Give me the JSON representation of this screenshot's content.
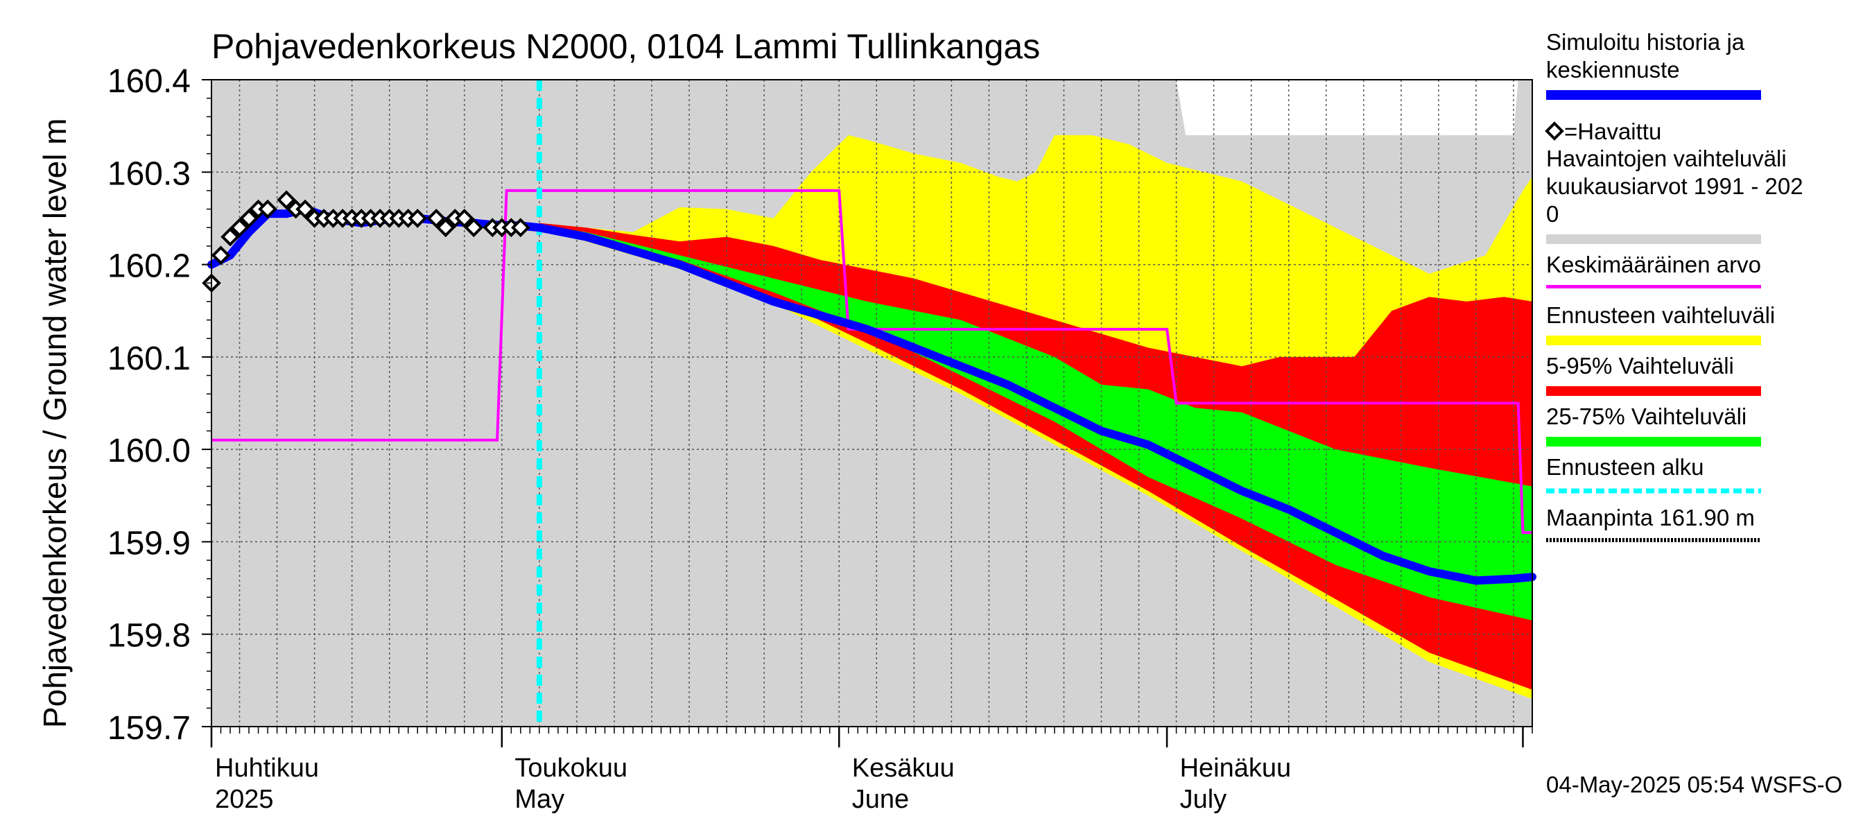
{
  "chart_data": {
    "type": "area",
    "title": "Pohjavedenkorkeus N2000, 0104 Lammi Tullinkangas",
    "ylabel": "Pohjavedenkorkeus / Ground water level   m",
    "xlabel": "",
    "ylim": [
      159.7,
      160.4
    ],
    "xlim_days": [
      0,
      141
    ],
    "y_ticks": [
      "159.7",
      "159.8",
      "159.9",
      "160.0",
      "160.1",
      "160.2",
      "160.3",
      "160.4"
    ],
    "x_month_labels": [
      {
        "day": 0,
        "fi": "Huhtikuu",
        "en": "2025"
      },
      {
        "day": 32,
        "fi": "Toukokuu",
        "en": "May"
      },
      {
        "day": 68,
        "fi": "Kesäkuu",
        "en": "June"
      },
      {
        "day": 103,
        "fi": "Heinäkuu",
        "en": "July"
      }
    ],
    "month_boundaries_days": [
      0,
      31,
      67,
      102,
      140
    ],
    "forecast_start_day": 35,
    "colors": {
      "history_range": "#d3d3d3",
      "mean": "#ff00ff",
      "forecast_range": "#ffff00",
      "p5_95": "#ff0000",
      "p25_75": "#00ff00",
      "forecast_start": "#00ffff",
      "simulated": "#0000ff",
      "observed": "#000000"
    },
    "history_range_upper": [
      [
        0,
        160.4
      ],
      [
        103,
        160.4
      ],
      [
        104,
        160.34
      ],
      [
        139,
        160.34
      ],
      [
        139.5,
        160.4
      ],
      [
        141,
        160.4
      ]
    ],
    "history_range_lower": [
      [
        0,
        159.7
      ],
      [
        141,
        159.7
      ]
    ],
    "forecast_range": {
      "upper": [
        [
          35,
          160.245
        ],
        [
          40,
          160.24
        ],
        [
          45,
          160.235
        ],
        [
          50,
          160.262
        ],
        [
          55,
          160.26
        ],
        [
          60,
          160.25
        ],
        [
          64,
          160.3
        ],
        [
          68,
          160.34
        ],
        [
          70,
          160.335
        ],
        [
          75,
          160.32
        ],
        [
          80,
          160.31
        ],
        [
          84,
          160.295
        ],
        [
          86,
          160.29
        ],
        [
          88,
          160.3
        ],
        [
          90,
          160.34
        ],
        [
          94,
          160.34
        ],
        [
          98,
          160.33
        ],
        [
          102,
          160.31
        ],
        [
          106,
          160.3
        ],
        [
          110,
          160.29
        ],
        [
          114,
          160.27
        ],
        [
          118,
          160.25
        ],
        [
          122,
          160.23
        ],
        [
          126,
          160.21
        ],
        [
          130,
          160.19
        ],
        [
          133,
          160.2
        ],
        [
          136,
          160.21
        ],
        [
          140,
          160.28
        ],
        [
          141,
          160.295
        ]
      ],
      "lower": [
        [
          35,
          160.24
        ],
        [
          40,
          160.225
        ],
        [
          50,
          160.195
        ],
        [
          60,
          160.158
        ],
        [
          70,
          160.108
        ],
        [
          80,
          160.06
        ],
        [
          90,
          160.005
        ],
        [
          100,
          159.95
        ],
        [
          110,
          159.89
        ],
        [
          120,
          159.83
        ],
        [
          130,
          159.77
        ],
        [
          141,
          159.73
        ]
      ]
    },
    "p5_95": {
      "upper": [
        [
          35,
          160.245
        ],
        [
          40,
          160.24
        ],
        [
          45,
          160.232
        ],
        [
          50,
          160.225
        ],
        [
          55,
          160.23
        ],
        [
          60,
          160.22
        ],
        [
          65,
          160.205
        ],
        [
          70,
          160.195
        ],
        [
          75,
          160.185
        ],
        [
          80,
          160.17
        ],
        [
          85,
          160.155
        ],
        [
          90,
          160.14
        ],
        [
          95,
          160.125
        ],
        [
          100,
          160.11
        ],
        [
          105,
          160.1
        ],
        [
          110,
          160.09
        ],
        [
          114,
          160.1
        ],
        [
          118,
          160.1
        ],
        [
          122,
          160.1
        ],
        [
          126,
          160.15
        ],
        [
          130,
          160.165
        ],
        [
          134,
          160.16
        ],
        [
          138,
          160.165
        ],
        [
          141,
          160.16
        ]
      ],
      "lower": [
        [
          35,
          160.24
        ],
        [
          40,
          160.228
        ],
        [
          50,
          160.2
        ],
        [
          60,
          160.164
        ],
        [
          70,
          160.115
        ],
        [
          80,
          160.065
        ],
        [
          90,
          160.01
        ],
        [
          100,
          159.955
        ],
        [
          110,
          159.895
        ],
        [
          120,
          159.838
        ],
        [
          130,
          159.78
        ],
        [
          141,
          159.74
        ]
      ]
    },
    "p25_75": {
      "upper": [
        [
          35,
          160.243
        ],
        [
          40,
          160.235
        ],
        [
          50,
          160.21
        ],
        [
          60,
          160.185
        ],
        [
          70,
          160.16
        ],
        [
          80,
          160.14
        ],
        [
          90,
          160.1
        ],
        [
          95,
          160.07
        ],
        [
          100,
          160.065
        ],
        [
          105,
          160.045
        ],
        [
          110,
          160.04
        ],
        [
          115,
          160.02
        ],
        [
          120,
          160.0
        ],
        [
          130,
          159.98
        ],
        [
          141,
          159.96
        ]
      ],
      "lower": [
        [
          35,
          160.24
        ],
        [
          40,
          160.231
        ],
        [
          50,
          160.205
        ],
        [
          60,
          160.17
        ],
        [
          70,
          160.13
        ],
        [
          80,
          160.08
        ],
        [
          90,
          160.03
        ],
        [
          100,
          159.97
        ],
        [
          110,
          159.925
        ],
        [
          120,
          159.875
        ],
        [
          130,
          159.84
        ],
        [
          141,
          159.815
        ]
      ]
    },
    "mean_level": [
      [
        0,
        160.01
      ],
      [
        30.5,
        160.01
      ],
      [
        31.5,
        160.28
      ],
      [
        67,
        160.28
      ],
      [
        68,
        160.13
      ],
      [
        102,
        160.13
      ],
      [
        103,
        160.05
      ],
      [
        139.5,
        160.05
      ],
      [
        140,
        159.91
      ],
      [
        141,
        159.91
      ]
    ],
    "simulated": [
      [
        0,
        160.2
      ],
      [
        2,
        160.21
      ],
      [
        4,
        160.235
      ],
      [
        6,
        160.255
      ],
      [
        8,
        160.255
      ],
      [
        10,
        160.26
      ],
      [
        12,
        160.253
      ],
      [
        14,
        160.248
      ],
      [
        16,
        160.245
      ],
      [
        18,
        160.248
      ],
      [
        20,
        160.25
      ],
      [
        22,
        160.25
      ],
      [
        24,
        160.248
      ],
      [
        26,
        160.246
      ],
      [
        28,
        160.245
      ],
      [
        30,
        160.243
      ],
      [
        33,
        160.242
      ],
      [
        35,
        160.24
      ],
      [
        40,
        160.23
      ],
      [
        45,
        160.215
      ],
      [
        50,
        160.2
      ],
      [
        55,
        160.18
      ],
      [
        60,
        160.16
      ],
      [
        65,
        160.145
      ],
      [
        70,
        160.13
      ],
      [
        75,
        160.11
      ],
      [
        80,
        160.09
      ],
      [
        85,
        160.07
      ],
      [
        90,
        160.045
      ],
      [
        95,
        160.02
      ],
      [
        100,
        160.005
      ],
      [
        105,
        159.98
      ],
      [
        110,
        159.955
      ],
      [
        115,
        159.935
      ],
      [
        120,
        159.91
      ],
      [
        125,
        159.885
      ],
      [
        130,
        159.868
      ],
      [
        135,
        159.858
      ],
      [
        139,
        159.86
      ],
      [
        141,
        159.862
      ]
    ],
    "observed": [
      [
        0,
        160.18
      ],
      [
        1,
        160.21
      ],
      [
        2,
        160.23
      ],
      [
        3,
        160.24
      ],
      [
        4,
        160.25
      ],
      [
        5,
        160.26
      ],
      [
        6,
        160.26
      ],
      [
        8,
        160.27
      ],
      [
        9,
        160.26
      ],
      [
        10,
        160.26
      ],
      [
        11,
        160.25
      ],
      [
        12,
        160.25
      ],
      [
        13,
        160.25
      ],
      [
        14,
        160.25
      ],
      [
        15,
        160.25
      ],
      [
        16,
        160.25
      ],
      [
        17,
        160.25
      ],
      [
        18,
        160.25
      ],
      [
        19,
        160.25
      ],
      [
        20,
        160.25
      ],
      [
        21,
        160.25
      ],
      [
        22,
        160.25
      ],
      [
        24,
        160.25
      ],
      [
        25,
        160.24
      ],
      [
        26,
        160.25
      ],
      [
        27,
        160.25
      ],
      [
        28,
        160.24
      ],
      [
        30,
        160.24
      ],
      [
        31,
        160.24
      ],
      [
        32,
        160.24
      ],
      [
        33,
        160.24
      ]
    ],
    "legend": [
      {
        "label": "Simuloitu historia ja\nkeskiennuste",
        "symbol": "line",
        "color": "#0000ff"
      },
      {
        "label": "=Havaittu",
        "symbol": "diamond",
        "color": "#000000"
      },
      {
        "label": "Havaintojen vaihteluväli\n kuukausiarvot 1991 - 202\n0",
        "symbol": "band",
        "color": "#d3d3d3"
      },
      {
        "label": "Keskimääräinen arvo",
        "symbol": "line",
        "color": "#ff00ff"
      },
      {
        "label": "Ennusteen vaihteluväli",
        "symbol": "band",
        "color": "#ffff00"
      },
      {
        "label": "5-95% Vaihteluväli",
        "symbol": "band",
        "color": "#ff0000"
      },
      {
        "label": "25-75% Vaihteluväli",
        "symbol": "band",
        "color": "#00ff00"
      },
      {
        "label": "Ennusteen alku",
        "symbol": "dashed",
        "color": "#00ffff"
      },
      {
        "label": "Maanpinta 161.90 m",
        "symbol": "dotted",
        "color": "#000000"
      }
    ],
    "footer": "04-May-2025 05:54 WSFS-O"
  }
}
